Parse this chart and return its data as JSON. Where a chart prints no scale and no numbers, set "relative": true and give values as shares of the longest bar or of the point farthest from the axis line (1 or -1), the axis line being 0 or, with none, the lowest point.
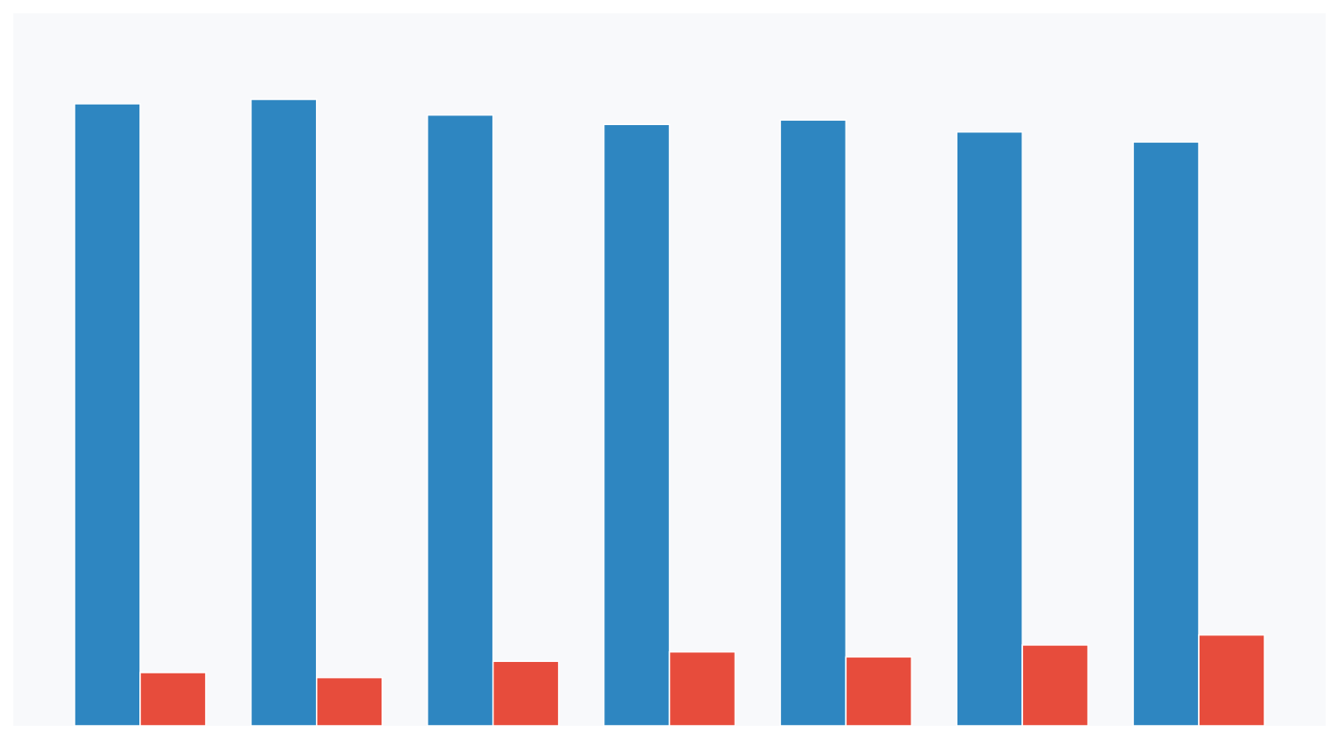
{
  "chart_data": {
    "type": "bar",
    "relative": true,
    "categories": [
      null,
      null,
      null,
      null,
      null,
      null,
      null
    ],
    "series": [
      {
        "color": "#2e86c1",
        "values": [
          0.993,
          1,
          0.975,
          0.96,
          0.967,
          0.948,
          0.932
        ]
      },
      {
        "color": "#e74c3c",
        "values": [
          0.085,
          0.077,
          0.103,
          0.118,
          0.11,
          0.129,
          0.145
        ]
      }
    ]
  }
}
